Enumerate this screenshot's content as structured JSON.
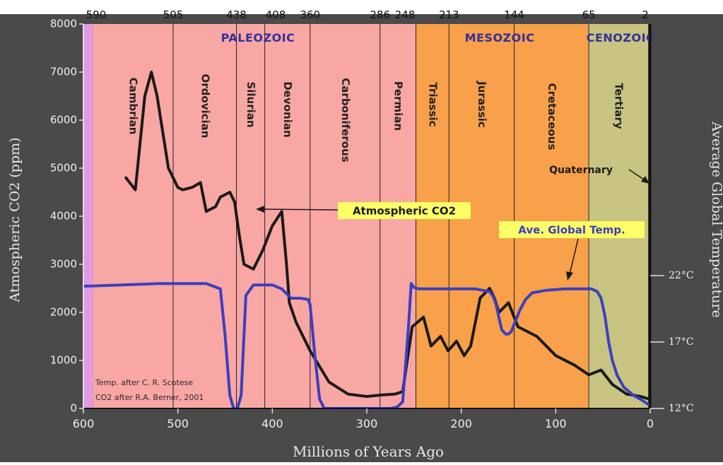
{
  "colors": {
    "background": "#4a4a4a",
    "paleozoic": "#f9a7a4",
    "mesozoic": "#f8a04a",
    "cenozoic": "#c8c482",
    "precambrian": "#e19ae6",
    "co2_line": "#1a1a1a",
    "temp_line": "#3b3fc0",
    "era_label": "#34309a",
    "callout_bg": "#ffff66",
    "axis_text": "#f0f0f0"
  },
  "chart_data": {
    "type": "line",
    "title": "",
    "xlabel": "Millions of Years Ago",
    "ylabel": "Atmospheric CO2 (ppm)",
    "y2label": "Average Global Temperature",
    "xlim": [
      600,
      0
    ],
    "ylim": [
      0,
      8000
    ],
    "y2lim": [
      12,
      22
    ],
    "x_ticks": [
      "600",
      "500",
      "400",
      "300",
      "200",
      "100",
      "0"
    ],
    "y_ticks": [
      "0",
      "1000",
      "2000",
      "3000",
      "4000",
      "5000",
      "6000",
      "7000",
      "8000"
    ],
    "y2_ticks": [
      "12°C",
      "17°C",
      "22°C"
    ],
    "boundary_ticks": [
      "590",
      "505",
      "438",
      "408",
      "360",
      "286",
      "248",
      "213",
      "144",
      "65",
      "2"
    ],
    "eras": [
      {
        "name": "PALEOZOIC",
        "from": 590,
        "to": 248
      },
      {
        "name": "MESOZOIC",
        "from": 248,
        "to": 65
      },
      {
        "name": "CENOZOIC",
        "from": 65,
        "to": 2
      }
    ],
    "periods": [
      {
        "name": "Cambrian",
        "from": 590,
        "to": 505
      },
      {
        "name": "Ordovician",
        "from": 505,
        "to": 438
      },
      {
        "name": "Silurian",
        "from": 438,
        "to": 408
      },
      {
        "name": "Devonian",
        "from": 408,
        "to": 360
      },
      {
        "name": "Carboniferous",
        "from": 360,
        "to": 286
      },
      {
        "name": "Permian",
        "from": 286,
        "to": 248
      },
      {
        "name": "Triassic",
        "from": 248,
        "to": 213
      },
      {
        "name": "Jurassic",
        "from": 213,
        "to": 144
      },
      {
        "name": "Cretaceous",
        "from": 144,
        "to": 65
      },
      {
        "name": "Tertiary",
        "from": 65,
        "to": 2
      }
    ],
    "quaternary_label": "Quaternary",
    "series": [
      {
        "name": "Atmospheric CO2",
        "axis": "left",
        "x": [
          555,
          545,
          535,
          528,
          522,
          510,
          500,
          495,
          485,
          476,
          470,
          460,
          455,
          445,
          440,
          435,
          430,
          420,
          410,
          400,
          390,
          385,
          382,
          375,
          360,
          340,
          320,
          300,
          285,
          270,
          262,
          252,
          240,
          232,
          222,
          214,
          205,
          197,
          190,
          180,
          170,
          165,
          160,
          150,
          140,
          120,
          100,
          80,
          65,
          52,
          40,
          25,
          10,
          2
        ],
        "y": [
          4800,
          4550,
          6500,
          7000,
          6500,
          5000,
          4600,
          4550,
          4600,
          4700,
          4100,
          4200,
          4400,
          4500,
          4300,
          3600,
          3000,
          2900,
          3300,
          3800,
          4100,
          3000,
          2200,
          1800,
          1200,
          550,
          300,
          250,
          280,
          300,
          350,
          1700,
          1900,
          1300,
          1500,
          1200,
          1400,
          1100,
          1300,
          2300,
          2500,
          2300,
          2000,
          2200,
          1700,
          1500,
          1100,
          900,
          700,
          800,
          500,
          300,
          250,
          200
        ]
      },
      {
        "name": "Ave. Global Temp.",
        "axis": "right",
        "x": [
          600,
          560,
          520,
          500,
          470,
          455,
          450,
          445,
          441,
          437,
          433,
          428,
          420,
          400,
          390,
          380,
          370,
          362,
          360,
          355,
          350,
          345,
          340,
          325,
          310,
          290,
          275,
          268,
          262,
          256,
          253,
          250,
          245,
          230,
          210,
          185,
          170,
          166,
          163,
          160,
          157,
          153,
          150,
          147,
          143,
          138,
          132,
          125,
          110,
          90,
          70,
          62,
          56,
          52,
          48,
          44,
          40,
          35,
          28,
          18,
          8,
          2
        ],
        "y": [
          21.2,
          21.3,
          21.4,
          21.4,
          21.4,
          21.0,
          17.5,
          13.0,
          12.0,
          12.0,
          13.0,
          20.5,
          21.3,
          21.3,
          21.0,
          20.3,
          20.3,
          20.2,
          19.8,
          16.0,
          12.7,
          12.0,
          12.0,
          12.0,
          12.0,
          12.0,
          12.0,
          12.1,
          12.5,
          18.0,
          21.4,
          21.1,
          21.0,
          21.0,
          21.0,
          21.0,
          20.8,
          20.4,
          19.8,
          18.8,
          17.9,
          17.6,
          17.6,
          17.8,
          18.5,
          19.4,
          20.2,
          20.7,
          20.9,
          21.0,
          21.0,
          21.0,
          20.8,
          20.3,
          19.0,
          17.0,
          15.6,
          14.5,
          13.6,
          13.0,
          12.6,
          12.3
        ]
      }
    ],
    "annotations": [
      {
        "text": "Atmospheric CO2",
        "target": "Atmospheric CO2"
      },
      {
        "text": "Ave. Global Temp.",
        "target": "Ave. Global Temp."
      },
      {
        "text": "Temp. after C. R. Scotese"
      },
      {
        "text": "CO2 after R.A. Berner, 2001"
      }
    ],
    "grid": false,
    "legend": "none"
  }
}
